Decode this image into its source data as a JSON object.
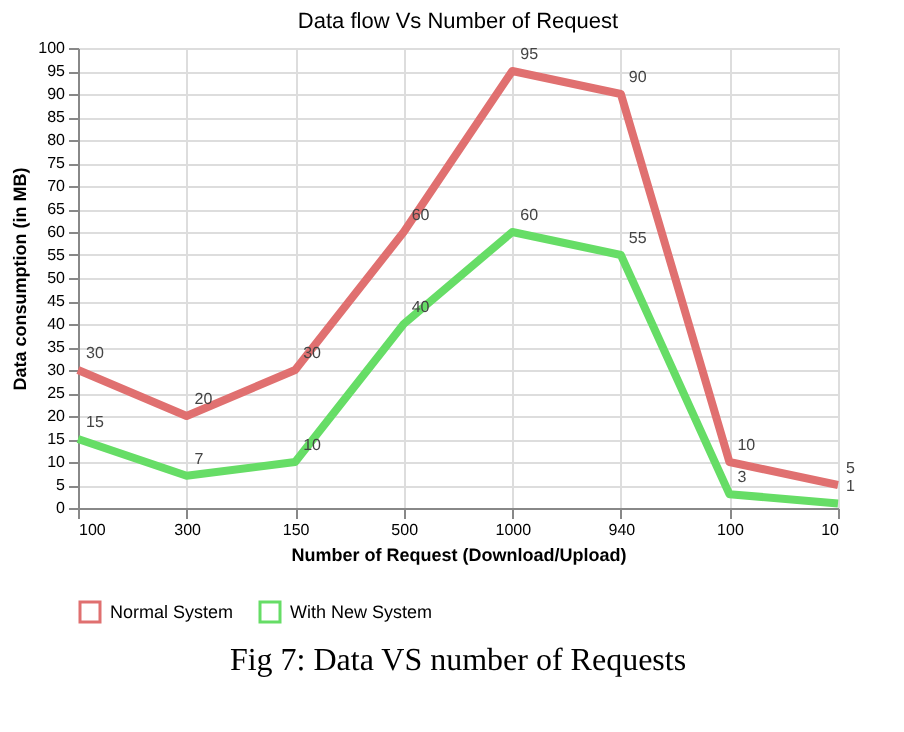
{
  "chart_data": {
    "type": "line",
    "title": "Data flow Vs Number of Request",
    "xlabel": "Number of Request (Download/Upload)",
    "ylabel": "Data consumption  (in MB)",
    "categories": [
      "100",
      "300",
      "150",
      "500",
      "1000",
      "940",
      "100",
      "10"
    ],
    "series": [
      {
        "name": "Normal System",
        "color": "#e07070",
        "values": [
          30,
          20,
          30,
          60,
          95,
          90,
          10,
          5
        ]
      },
      {
        "name": "With New System",
        "color": "#66dd66",
        "values": [
          15,
          7,
          10,
          40,
          60,
          55,
          3,
          1
        ]
      }
    ],
    "ylim": [
      0,
      100
    ],
    "yticks": [
      0,
      5,
      10,
      15,
      20,
      25,
      30,
      35,
      40,
      45,
      50,
      55,
      60,
      65,
      70,
      75,
      80,
      85,
      90,
      95,
      100
    ],
    "grid": true,
    "legend": "bottom left",
    "data_labels": true,
    "marker": "none",
    "line_style": "solid",
    "annotations": [
      "Fig 7: Data VS number of Requests"
    ]
  }
}
